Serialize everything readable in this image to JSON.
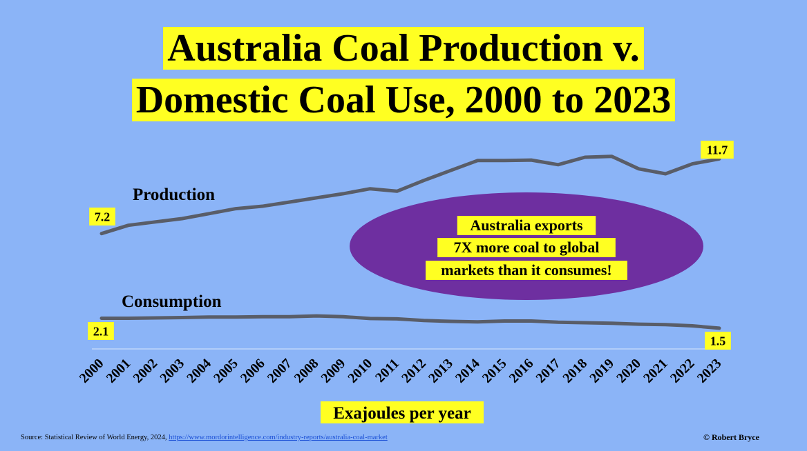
{
  "chart_data": {
    "type": "line",
    "title_lines": [
      "Australia Coal Production v.",
      "Domestic Coal Use, 2000 to 2023"
    ],
    "xlabel": "Exajoules per year",
    "x": [
      2000,
      2001,
      2002,
      2003,
      2004,
      2005,
      2006,
      2007,
      2008,
      2009,
      2010,
      2011,
      2012,
      2013,
      2014,
      2015,
      2016,
      2017,
      2018,
      2019,
      2020,
      2021,
      2022,
      2023
    ],
    "x_tick_labels": [
      "2000",
      "2001",
      "2002",
      "2003",
      "2004",
      "2005",
      "2006",
      "2007",
      "2008",
      "2009",
      "2010",
      "2011",
      "2012",
      "2013",
      "2014",
      "2015",
      "2016",
      "2017",
      "2018",
      "2019",
      "2020",
      "2021",
      "2022",
      "2023"
    ],
    "ylim": [
      0,
      14
    ],
    "grid": false,
    "series": [
      {
        "name": "Production",
        "color": "#595d68",
        "values": [
          7.2,
          7.7,
          7.9,
          8.1,
          8.4,
          8.7,
          8.85,
          9.1,
          9.35,
          9.6,
          9.9,
          9.75,
          10.4,
          11.0,
          11.6,
          11.6,
          11.63,
          11.35,
          11.8,
          11.85,
          11.1,
          10.8,
          11.4,
          11.7
        ],
        "start_label": "7.2",
        "end_label": "11.7"
      },
      {
        "name": "Consumption",
        "color": "#595d68",
        "values": [
          2.1,
          2.1,
          2.12,
          2.14,
          2.17,
          2.17,
          2.19,
          2.19,
          2.24,
          2.19,
          2.08,
          2.06,
          1.96,
          1.91,
          1.88,
          1.93,
          1.93,
          1.86,
          1.83,
          1.8,
          1.74,
          1.71,
          1.64,
          1.5
        ],
        "start_label": "2.1",
        "end_label": "1.5"
      }
    ],
    "annotation": {
      "lines": [
        "Australia exports",
        "7X more coal to global",
        "markets than it consumes!"
      ],
      "fill": "#6e2fa0"
    }
  },
  "footer": {
    "source_prefix": "Source: Statistical Review of World Energy, 2024, ",
    "source_link": "https://www.mordorintelligence.com/industry-reports/australia-coal-market",
    "credit": "© Robert Bryce"
  },
  "colors": {
    "background": "#8bb4f7",
    "highlight": "#ffff22",
    "line": "#595d68",
    "ellipse": "#6e2fa0"
  }
}
